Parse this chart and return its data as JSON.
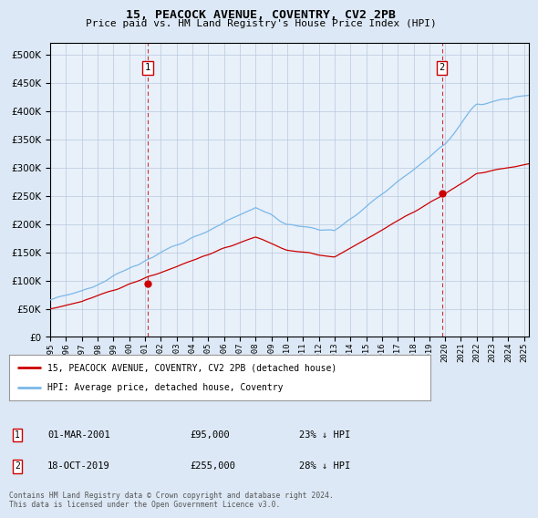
{
  "title": "15, PEACOCK AVENUE, COVENTRY, CV2 2PB",
  "subtitle": "Price paid vs. HM Land Registry's House Price Index (HPI)",
  "yticks": [
    0,
    50000,
    100000,
    150000,
    200000,
    250000,
    300000,
    350000,
    400000,
    450000,
    500000
  ],
  "ylim": [
    0,
    520000
  ],
  "xlim_start": 1995.0,
  "xlim_end": 2025.3,
  "hpi_color": "#7ab8e8",
  "price_color": "#cc0000",
  "marker1_date": 2001.17,
  "marker1_price": 95000,
  "marker2_date": 2019.79,
  "marker2_price": 255000,
  "sale1_label": "01-MAR-2001",
  "sale1_price": "£95,000",
  "sale1_pct": "23% ↓ HPI",
  "sale2_label": "18-OCT-2019",
  "sale2_price": "£255,000",
  "sale2_pct": "28% ↓ HPI",
  "legend_line1": "15, PEACOCK AVENUE, COVENTRY, CV2 2PB (detached house)",
  "legend_line2": "HPI: Average price, detached house, Coventry",
  "footnote": "Contains HM Land Registry data © Crown copyright and database right 2024.\nThis data is licensed under the Open Government Licence v3.0.",
  "bg_color": "#dce8f5",
  "plot_bg": "#e8f0fa",
  "grid_color": "#b8c8dc"
}
